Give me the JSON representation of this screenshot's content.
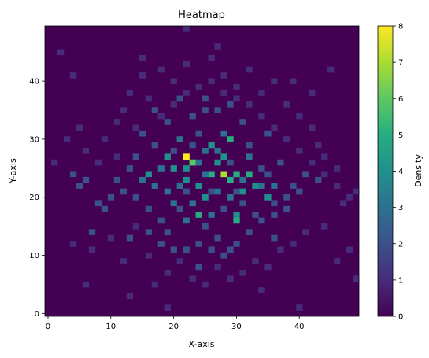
{
  "chart_data": {
    "type": "heatmap",
    "title": "Heatmap",
    "xlabel": "X-axis",
    "ylabel": "Y-axis",
    "colorbar_label": "Density",
    "x_range": [
      -0.5,
      49.5
    ],
    "y_range": [
      -0.5,
      49.5
    ],
    "x_ticks": [
      0,
      10,
      20,
      30,
      40
    ],
    "y_ticks": [
      0,
      10,
      20,
      30,
      40
    ],
    "colorbar_range": [
      0,
      8
    ],
    "colorbar_ticks": [
      0,
      1,
      2,
      3,
      4,
      5,
      6,
      7,
      8
    ],
    "colormap": "viridis",
    "grid": false,
    "background_value": 0,
    "cells": [
      [
        22,
        27,
        8
      ],
      [
        28,
        24,
        7
      ],
      [
        23,
        26,
        6
      ],
      [
        29,
        30,
        5
      ],
      [
        32,
        24,
        5
      ],
      [
        30,
        24,
        5
      ],
      [
        24,
        17,
        5
      ],
      [
        29,
        23,
        5
      ],
      [
        30,
        16,
        5
      ],
      [
        26,
        24,
        5
      ],
      [
        20,
        25,
        4
      ],
      [
        16,
        24,
        4
      ],
      [
        27,
        26,
        4
      ],
      [
        22,
        23,
        4
      ],
      [
        25,
        20,
        4
      ],
      [
        33,
        22,
        4
      ],
      [
        31,
        21,
        4
      ],
      [
        26,
        29,
        4
      ],
      [
        30,
        17,
        4
      ],
      [
        22,
        25,
        4
      ],
      [
        19,
        27,
        4
      ],
      [
        24,
        22,
        4
      ],
      [
        28,
        27,
        4
      ],
      [
        35,
        20,
        4
      ],
      [
        18,
        25,
        3
      ],
      [
        21,
        22,
        3
      ],
      [
        24,
        26,
        3
      ],
      [
        25,
        28,
        3
      ],
      [
        27,
        21,
        3
      ],
      [
        23,
        19,
        3
      ],
      [
        19,
        21,
        3
      ],
      [
        26,
        17,
        3
      ],
      [
        32,
        27,
        3
      ],
      [
        34,
        22,
        3
      ],
      [
        29,
        20,
        3
      ],
      [
        17,
        22,
        3
      ],
      [
        21,
        30,
        3
      ],
      [
        28,
        31,
        3
      ],
      [
        31,
        23,
        3
      ],
      [
        22,
        16,
        3
      ],
      [
        25,
        24,
        3
      ],
      [
        20,
        19,
        3
      ],
      [
        36,
        22,
        3
      ],
      [
        27,
        28,
        3
      ],
      [
        15,
        23,
        3
      ],
      [
        13,
        25,
        2
      ],
      [
        14,
        20,
        2
      ],
      [
        16,
        18,
        2
      ],
      [
        17,
        29,
        2
      ],
      [
        18,
        16,
        2
      ],
      [
        19,
        14,
        2
      ],
      [
        20,
        28,
        2
      ],
      [
        21,
        18,
        2
      ],
      [
        22,
        21,
        2
      ],
      [
        23,
        29,
        2
      ],
      [
        24,
        31,
        2
      ],
      [
        25,
        15,
        2
      ],
      [
        26,
        21,
        2
      ],
      [
        27,
        13,
        2
      ],
      [
        28,
        18,
        2
      ],
      [
        29,
        26,
        2
      ],
      [
        30,
        21,
        2
      ],
      [
        31,
        19,
        2
      ],
      [
        32,
        29,
        2
      ],
      [
        33,
        17,
        2
      ],
      [
        34,
        25,
        2
      ],
      [
        35,
        24,
        2
      ],
      [
        36,
        19,
        2
      ],
      [
        37,
        26,
        2
      ],
      [
        38,
        20,
        2
      ],
      [
        39,
        22,
        2
      ],
      [
        12,
        21,
        2
      ],
      [
        11,
        23,
        2
      ],
      [
        14,
        27,
        2
      ],
      [
        16,
        14,
        2
      ],
      [
        18,
        12,
        2
      ],
      [
        20,
        11,
        2
      ],
      [
        22,
        11,
        2
      ],
      [
        24,
        12,
        2
      ],
      [
        26,
        11,
        2
      ],
      [
        28,
        10,
        2
      ],
      [
        30,
        12,
        2
      ],
      [
        32,
        14,
        2
      ],
      [
        34,
        16,
        2
      ],
      [
        36,
        17,
        2
      ],
      [
        38,
        18,
        2
      ],
      [
        40,
        21,
        2
      ],
      [
        10,
        20,
        2
      ],
      [
        9,
        18,
        2
      ],
      [
        15,
        31,
        2
      ],
      [
        19,
        33,
        2
      ],
      [
        23,
        34,
        2
      ],
      [
        27,
        35,
        2
      ],
      [
        31,
        33,
        2
      ],
      [
        35,
        31,
        2
      ],
      [
        29,
        36,
        2
      ],
      [
        25,
        37,
        2
      ],
      [
        21,
        37,
        2
      ],
      [
        17,
        35,
        2
      ],
      [
        7,
        14,
        2
      ],
      [
        8,
        19,
        2
      ],
      [
        6,
        23,
        2
      ],
      [
        5,
        22,
        2
      ],
      [
        41,
        24,
        2
      ],
      [
        43,
        23,
        2
      ],
      [
        4,
        24,
        2
      ],
      [
        25,
        35,
        2
      ],
      [
        13,
        13,
        2
      ],
      [
        36,
        13,
        2
      ],
      [
        24,
        8,
        2
      ],
      [
        29,
        11,
        2
      ],
      [
        3,
        30,
        1
      ],
      [
        2,
        45,
        1
      ],
      [
        4,
        41,
        1
      ],
      [
        5,
        32,
        1
      ],
      [
        6,
        28,
        1
      ],
      [
        7,
        11,
        1
      ],
      [
        8,
        26,
        1
      ],
      [
        9,
        30,
        1
      ],
      [
        10,
        13,
        1
      ],
      [
        11,
        33,
        1
      ],
      [
        12,
        9,
        1
      ],
      [
        13,
        38,
        1
      ],
      [
        14,
        15,
        1
      ],
      [
        15,
        41,
        1
      ],
      [
        16,
        10,
        1
      ],
      [
        17,
        5,
        1
      ],
      [
        18,
        42,
        1
      ],
      [
        19,
        7,
        1
      ],
      [
        20,
        40,
        1
      ],
      [
        21,
        9,
        1
      ],
      [
        22,
        43,
        1
      ],
      [
        23,
        6,
        1
      ],
      [
        24,
        39,
        1
      ],
      [
        25,
        5,
        1
      ],
      [
        26,
        44,
        1
      ],
      [
        27,
        8,
        1
      ],
      [
        28,
        41,
        1
      ],
      [
        29,
        6,
        1
      ],
      [
        30,
        39,
        1
      ],
      [
        31,
        7,
        1
      ],
      [
        32,
        42,
        1
      ],
      [
        33,
        9,
        1
      ],
      [
        34,
        38,
        1
      ],
      [
        35,
        8,
        1
      ],
      [
        36,
        40,
        1
      ],
      [
        37,
        11,
        1
      ],
      [
        38,
        36,
        1
      ],
      [
        39,
        12,
        1
      ],
      [
        40,
        34,
        1
      ],
      [
        41,
        14,
        1
      ],
      [
        42,
        38,
        1
      ],
      [
        43,
        29,
        1
      ],
      [
        44,
        27,
        1
      ],
      [
        45,
        42,
        1
      ],
      [
        46,
        25,
        1
      ],
      [
        47,
        19,
        1
      ],
      [
        48,
        11,
        1
      ],
      [
        49,
        6,
        1
      ],
      [
        42,
        32,
        1
      ],
      [
        44,
        15,
        1
      ],
      [
        46,
        9,
        1
      ],
      [
        11,
        27,
        1
      ],
      [
        12,
        35,
        1
      ],
      [
        14,
        32,
        1
      ],
      [
        16,
        37,
        1
      ],
      [
        18,
        34,
        1
      ],
      [
        20,
        36,
        1
      ],
      [
        22,
        38,
        1
      ],
      [
        26,
        40,
        1
      ],
      [
        28,
        38,
        1
      ],
      [
        30,
        37,
        1
      ],
      [
        32,
        36,
        1
      ],
      [
        34,
        34,
        1
      ],
      [
        36,
        32,
        1
      ],
      [
        38,
        30,
        1
      ],
      [
        40,
        28,
        1
      ],
      [
        42,
        26,
        1
      ],
      [
        44,
        24,
        1
      ],
      [
        46,
        22,
        1
      ],
      [
        48,
        20,
        1
      ],
      [
        22,
        49,
        1
      ],
      [
        27,
        46,
        1
      ],
      [
        39,
        40,
        1
      ],
      [
        15,
        44,
        1
      ],
      [
        34,
        4,
        1
      ],
      [
        19,
        1,
        1
      ],
      [
        40,
        1,
        1
      ],
      [
        49,
        21,
        1
      ],
      [
        1,
        26,
        1
      ],
      [
        4,
        12,
        1
      ],
      [
        6,
        5,
        1
      ],
      [
        13,
        3,
        1
      ]
    ]
  }
}
